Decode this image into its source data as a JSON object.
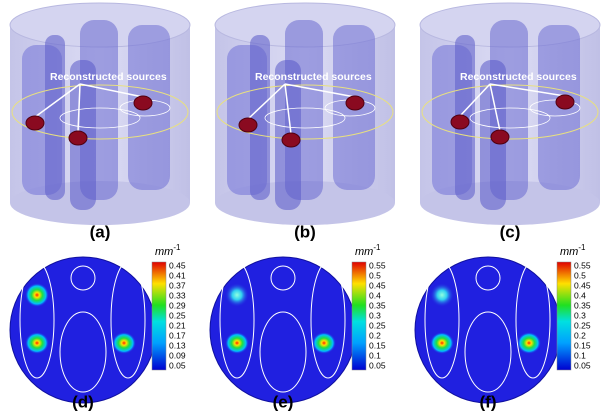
{
  "panels": [
    {
      "label": "(a)",
      "annotation": "Reconstructed sources"
    },
    {
      "label": "(b)",
      "annotation": "Reconstructed sources"
    },
    {
      "label": "(c)",
      "annotation": "Reconstructed sources"
    }
  ],
  "maps": [
    {
      "label": "(d)",
      "unit": "mm",
      "unit_exponent": "-1",
      "colorbar_ticks": [
        "0.45",
        "0.41",
        "0.37",
        "0.33",
        "0.29",
        "0.25",
        "0.21",
        "0.17",
        "0.13",
        "0.09",
        "0.05"
      ]
    },
    {
      "label": "(e)",
      "unit": "mm",
      "unit_exponent": "-1",
      "colorbar_ticks": [
        "0.55",
        "0.5",
        "0.45",
        "0.4",
        "0.35",
        "0.3",
        "0.25",
        "0.2",
        "0.15",
        "0.1",
        "0.05"
      ]
    },
    {
      "label": "(f)",
      "unit": "mm",
      "unit_exponent": "-1",
      "colorbar_ticks": [
        "0.55",
        "0.5",
        "0.45",
        "0.4",
        "0.35",
        "0.3",
        "0.25",
        "0.2",
        "0.15",
        "0.1",
        "0.05"
      ]
    }
  ]
}
